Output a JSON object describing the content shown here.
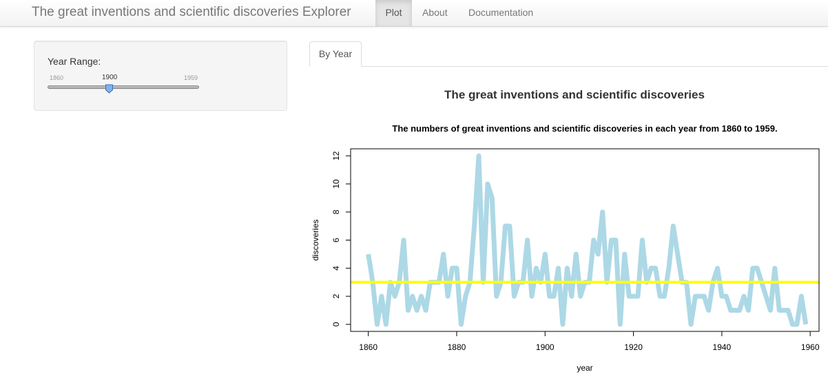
{
  "navbar": {
    "brand": "The great inventions and scientific discoveries Explorer",
    "items": [
      {
        "label": "Plot",
        "active": true
      },
      {
        "label": "About",
        "active": false
      },
      {
        "label": "Documentation",
        "active": false
      }
    ]
  },
  "sidebar": {
    "range_label": "Year Range:",
    "slider": {
      "min": 1860,
      "max": 1959,
      "value": 1900,
      "min_label": "1860",
      "max_label": "1959",
      "value_label": "1900"
    }
  },
  "tabs": [
    {
      "label": "By Year",
      "active": true
    }
  ],
  "chart_data": {
    "type": "line",
    "title": "The great inventions and scientific discoveries",
    "subtitle": "The numbers of great inventions and scientific discoveries in each year from 1860 to 1959.",
    "xlabel": "year",
    "ylabel": "discoveries",
    "xlim": [
      1856,
      1962
    ],
    "ylim": [
      -0.5,
      12.5
    ],
    "xticks": [
      1860,
      1880,
      1900,
      1920,
      1940,
      1960
    ],
    "yticks": [
      0,
      2,
      4,
      6,
      8,
      10,
      12
    ],
    "grid": false,
    "series_color": "#add8e6",
    "x": [
      1860,
      1861,
      1862,
      1863,
      1864,
      1865,
      1866,
      1867,
      1868,
      1869,
      1870,
      1871,
      1872,
      1873,
      1874,
      1875,
      1876,
      1877,
      1878,
      1879,
      1880,
      1881,
      1882,
      1883,
      1884,
      1885,
      1886,
      1887,
      1888,
      1889,
      1890,
      1891,
      1892,
      1893,
      1894,
      1895,
      1896,
      1897,
      1898,
      1899,
      1900,
      1901,
      1902,
      1903,
      1904,
      1905,
      1906,
      1907,
      1908,
      1909,
      1910,
      1911,
      1912,
      1913,
      1914,
      1915,
      1916,
      1917,
      1918,
      1919,
      1920,
      1921,
      1922,
      1923,
      1924,
      1925,
      1926,
      1927,
      1928,
      1929,
      1930,
      1931,
      1932,
      1933,
      1934,
      1935,
      1936,
      1937,
      1938,
      1939,
      1940,
      1941,
      1942,
      1943,
      1944,
      1945,
      1946,
      1947,
      1948,
      1949,
      1950,
      1951,
      1952,
      1953,
      1954,
      1955,
      1956,
      1957,
      1958,
      1959
    ],
    "values": [
      5,
      3,
      0,
      2,
      0,
      3,
      2,
      3,
      6,
      1,
      2,
      1,
      2,
      1,
      3,
      3,
      3,
      5,
      2,
      4,
      4,
      0,
      2,
      3,
      7,
      12,
      3,
      10,
      9,
      2,
      3,
      7,
      7,
      2,
      3,
      3,
      6,
      2,
      4,
      3,
      5,
      2,
      2,
      4,
      0,
      4,
      2,
      5,
      2,
      3,
      3,
      6,
      5,
      8,
      3,
      6,
      6,
      0,
      5,
      2,
      2,
      2,
      6,
      3,
      4,
      4,
      2,
      2,
      4,
      7,
      5,
      3,
      3,
      0,
      2,
      2,
      2,
      1,
      3,
      4,
      2,
      2,
      1,
      1,
      1,
      2,
      1,
      4,
      4,
      3,
      2,
      1,
      4,
      1,
      1,
      1,
      0,
      0,
      2,
      0
    ],
    "reference_line": {
      "y": 3,
      "color": "#ffff00"
    }
  }
}
